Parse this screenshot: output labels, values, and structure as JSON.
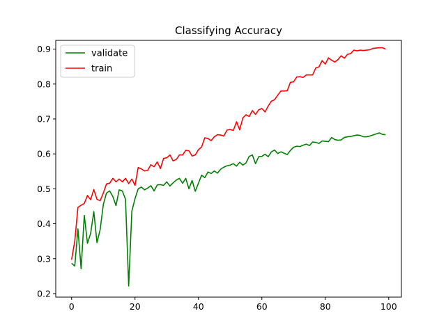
{
  "chart_data": {
    "type": "line",
    "title": "Classifying Accuracy",
    "xlabel": "",
    "ylabel": "",
    "xlim": [
      -5,
      104
    ],
    "ylim": [
      0.19,
      0.925
    ],
    "xticks": [
      0,
      20,
      40,
      60,
      80,
      100
    ],
    "yticks": [
      0.2,
      0.3,
      0.4,
      0.5,
      0.6,
      0.7,
      0.8,
      0.9
    ],
    "ytick_labels": [
      "0.2",
      "0.3",
      "0.4",
      "0.5",
      "0.6",
      "0.7",
      "0.8",
      "0.9"
    ],
    "grid": false,
    "legend_position": "top-left",
    "x": [
      0,
      1,
      2,
      3,
      4,
      5,
      6,
      7,
      8,
      9,
      10,
      11,
      12,
      13,
      14,
      15,
      16,
      17,
      18,
      19,
      20,
      21,
      22,
      23,
      24,
      25,
      26,
      27,
      28,
      29,
      30,
      31,
      32,
      33,
      34,
      35,
      36,
      37,
      38,
      39,
      40,
      41,
      42,
      43,
      44,
      45,
      46,
      47,
      48,
      49,
      50,
      51,
      52,
      53,
      54,
      55,
      56,
      57,
      58,
      59,
      60,
      61,
      62,
      63,
      64,
      65,
      66,
      67,
      68,
      69,
      70,
      71,
      72,
      73,
      74,
      75,
      76,
      77,
      78,
      79,
      80,
      81,
      82,
      83,
      84,
      85,
      86,
      87,
      88,
      89,
      90,
      91,
      92,
      93,
      94,
      95,
      96,
      97,
      98,
      99
    ],
    "series": [
      {
        "name": "validate",
        "color": "#008000",
        "values": [
          0.287,
          0.279,
          0.385,
          0.271,
          0.424,
          0.344,
          0.372,
          0.435,
          0.346,
          0.383,
          0.455,
          0.488,
          0.494,
          0.478,
          0.452,
          0.497,
          0.494,
          0.47,
          0.222,
          0.436,
          0.472,
          0.5,
          0.505,
          0.497,
          0.502,
          0.509,
          0.494,
          0.511,
          0.512,
          0.51,
          0.52,
          0.508,
          0.517,
          0.525,
          0.53,
          0.516,
          0.53,
          0.5,
          0.524,
          0.493,
          0.516,
          0.539,
          0.532,
          0.548,
          0.544,
          0.551,
          0.545,
          0.556,
          0.562,
          0.566,
          0.568,
          0.572,
          0.565,
          0.576,
          0.568,
          0.574,
          0.593,
          0.597,
          0.572,
          0.592,
          0.593,
          0.599,
          0.592,
          0.606,
          0.611,
          0.601,
          0.606,
          0.602,
          0.598,
          0.61,
          0.619,
          0.622,
          0.621,
          0.625,
          0.628,
          0.624,
          0.634,
          0.633,
          0.63,
          0.637,
          0.636,
          0.635,
          0.647,
          0.641,
          0.639,
          0.64,
          0.647,
          0.649,
          0.65,
          0.652,
          0.654,
          0.653,
          0.649,
          0.649,
          0.651,
          0.654,
          0.657,
          0.66,
          0.656,
          0.655
        ]
      },
      {
        "name": "train",
        "color": "#ff0000",
        "values": [
          0.297,
          0.35,
          0.447,
          0.453,
          0.458,
          0.481,
          0.469,
          0.498,
          0.47,
          0.466,
          0.488,
          0.514,
          0.516,
          0.53,
          0.52,
          0.528,
          0.52,
          0.53,
          0.515,
          0.528,
          0.51,
          0.561,
          0.557,
          0.551,
          0.553,
          0.569,
          0.563,
          0.577,
          0.558,
          0.587,
          0.589,
          0.597,
          0.58,
          0.584,
          0.597,
          0.597,
          0.61,
          0.609,
          0.594,
          0.597,
          0.612,
          0.62,
          0.646,
          0.644,
          0.638,
          0.649,
          0.655,
          0.654,
          0.651,
          0.668,
          0.67,
          0.667,
          0.692,
          0.669,
          0.703,
          0.712,
          0.707,
          0.724,
          0.713,
          0.726,
          0.73,
          0.72,
          0.737,
          0.751,
          0.755,
          0.768,
          0.78,
          0.78,
          0.781,
          0.805,
          0.806,
          0.82,
          0.821,
          0.819,
          0.826,
          0.826,
          0.826,
          0.846,
          0.849,
          0.867,
          0.857,
          0.875,
          0.868,
          0.863,
          0.87,
          0.881,
          0.874,
          0.885,
          0.887,
          0.897,
          0.895,
          0.897,
          0.896,
          0.897,
          0.898,
          0.902,
          0.903,
          0.904,
          0.904,
          0.9
        ]
      }
    ]
  }
}
